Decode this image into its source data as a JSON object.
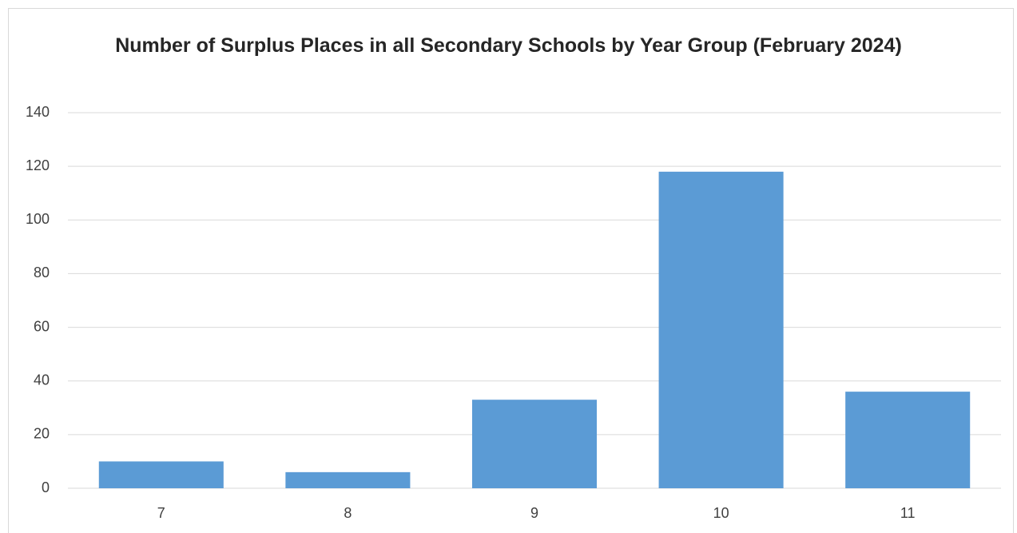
{
  "chart_data": {
    "type": "bar",
    "title": "Number of Surplus Places in all Secondary Schools by Year Group (February 2024)",
    "categories": [
      "7",
      "8",
      "9",
      "10",
      "11"
    ],
    "values": [
      10,
      6,
      33,
      118,
      36
    ],
    "color": "#5b9bd5",
    "ylim": [
      0,
      140
    ],
    "yticks": [
      0,
      20,
      40,
      60,
      80,
      100,
      120,
      140
    ],
    "grid": true
  }
}
